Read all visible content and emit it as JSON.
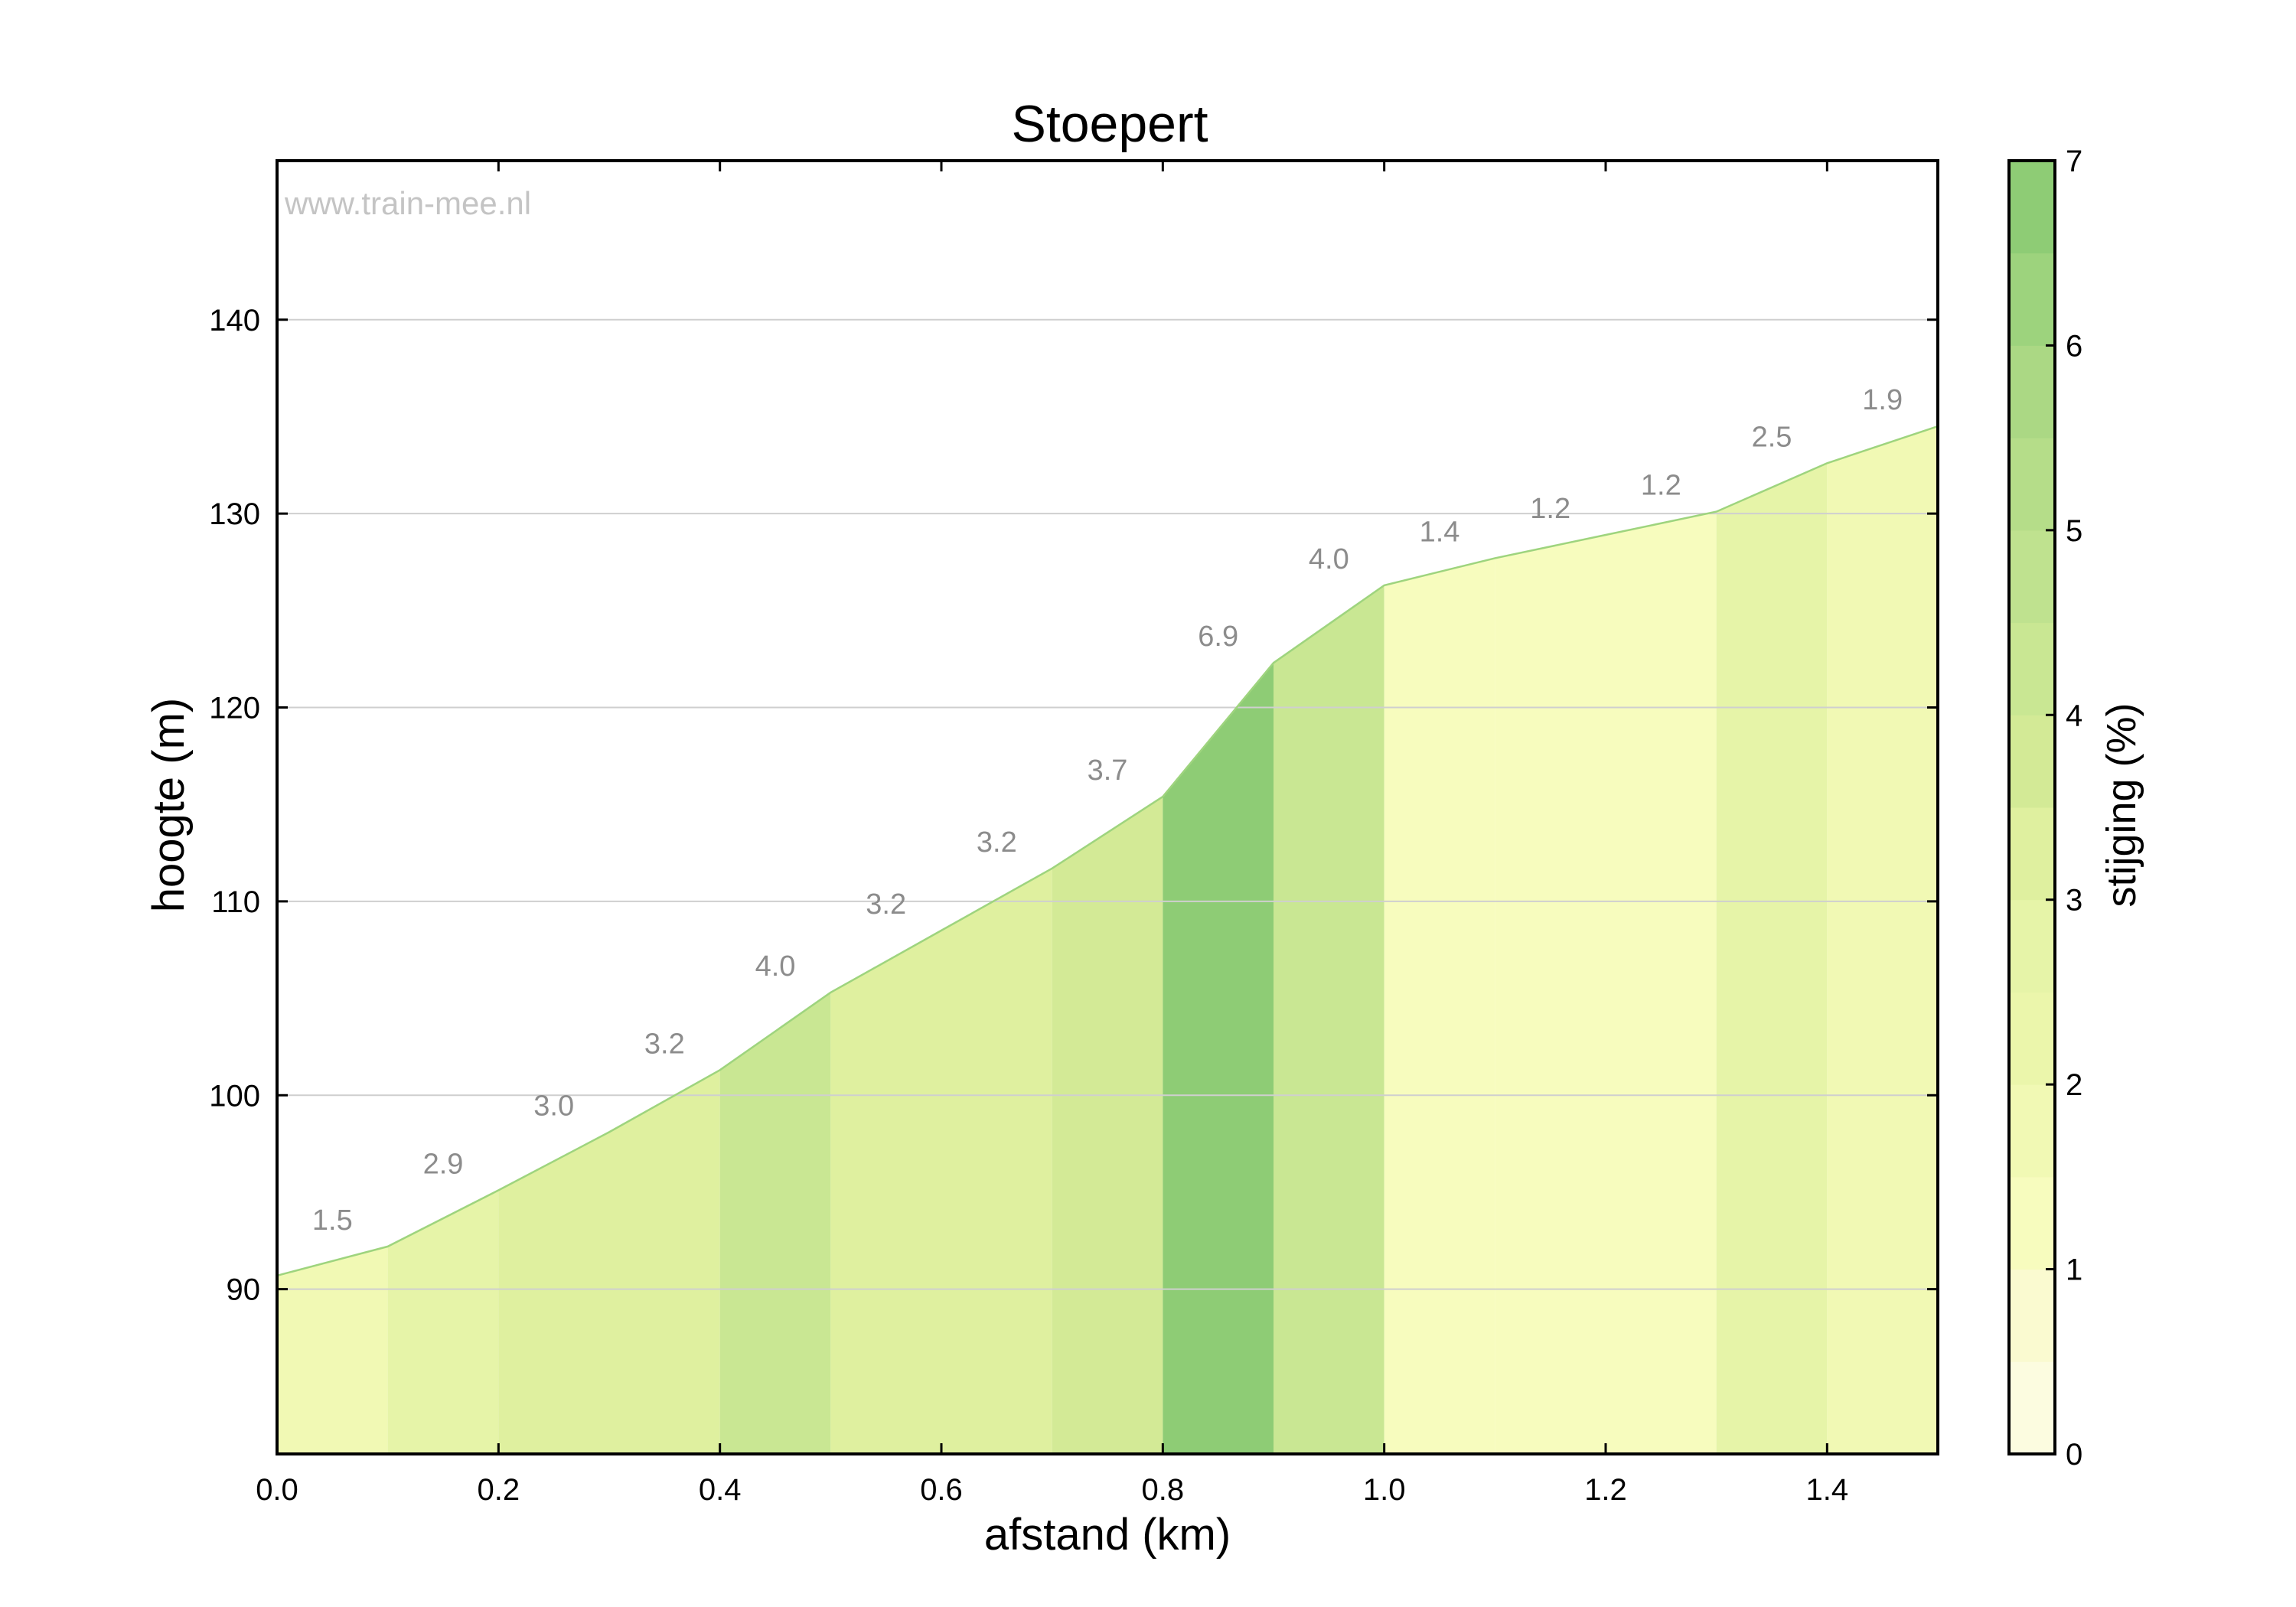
{
  "chart_data": {
    "type": "area",
    "title": "Stoepert",
    "watermark": "www.train-mee.nl",
    "xlabel": "afstand (km)",
    "ylabel": "hoogte (m)",
    "xlim": [
      0,
      1.5
    ],
    "ylim": [
      81.5,
      148.2
    ],
    "x_ticks": [
      0.0,
      0.2,
      0.4,
      0.6,
      0.8,
      1.0,
      1.2,
      1.4
    ],
    "x_tick_labels": [
      "0.0",
      "0.2",
      "0.4",
      "0.6",
      "0.8",
      "1.0",
      "1.2",
      "1.4"
    ],
    "y_ticks": [
      90,
      100,
      110,
      120,
      130,
      140
    ],
    "y_tick_labels": [
      "90",
      "100",
      "110",
      "120",
      "130",
      "140"
    ],
    "grid": "horizontal",
    "profile": {
      "x": [
        0.0,
        0.1,
        0.2,
        0.3,
        0.4,
        0.5,
        0.6,
        0.7,
        0.8,
        0.9,
        1.0,
        1.1,
        1.2,
        1.3,
        1.4,
        1.5
      ],
      "elevation": [
        90.7,
        92.2,
        95.1,
        98.1,
        101.3,
        105.3,
        108.5,
        111.7,
        115.4,
        122.3,
        126.3,
        127.7,
        128.9,
        130.1,
        132.6,
        134.5
      ]
    },
    "segments": {
      "grades": [
        1.5,
        2.9,
        3.0,
        3.2,
        4.0,
        3.2,
        3.2,
        3.7,
        6.9,
        4.0,
        1.4,
        1.2,
        1.2,
        2.5,
        1.9
      ],
      "grade_labels": [
        "1.5",
        "2.9",
        "3.0",
        "3.2",
        "4.0",
        "3.2",
        "3.2",
        "3.7",
        "6.9",
        "4.0",
        "1.4",
        "1.2",
        "1.2",
        "2.5",
        "1.9"
      ]
    },
    "colorbar": {
      "label": "stijging (%)",
      "range": [
        0,
        7
      ],
      "ticks": [
        0,
        1,
        2,
        3,
        4,
        5,
        6,
        7
      ],
      "tick_labels": [
        "0",
        "1",
        "2",
        "3",
        "4",
        "5",
        "6",
        "7"
      ],
      "bands": [
        {
          "from": 0.0,
          "to": 0.5,
          "color": "#fcfce0"
        },
        {
          "from": 0.5,
          "to": 1.0,
          "color": "#fafad0"
        },
        {
          "from": 1.0,
          "to": 1.5,
          "color": "#f7fcbe"
        },
        {
          "from": 1.5,
          "to": 2.0,
          "color": "#f1f9b4"
        },
        {
          "from": 2.0,
          "to": 2.5,
          "color": "#ebf6ab"
        },
        {
          "from": 2.5,
          "to": 3.0,
          "color": "#e6f4a8"
        },
        {
          "from": 3.0,
          "to": 3.5,
          "color": "#dff09f"
        },
        {
          "from": 3.5,
          "to": 4.0,
          "color": "#d3ea96"
        },
        {
          "from": 4.0,
          "to": 4.5,
          "color": "#c9e793"
        },
        {
          "from": 4.5,
          "to": 5.0,
          "color": "#bfe28f"
        },
        {
          "from": 5.0,
          "to": 5.5,
          "color": "#b5dd89"
        },
        {
          "from": 5.5,
          "to": 6.0,
          "color": "#abd884"
        },
        {
          "from": 6.0,
          "to": 6.5,
          "color": "#9dd37d"
        },
        {
          "from": 6.5,
          "to": 7.0,
          "color": "#8ecc75"
        }
      ]
    },
    "line_color": "#9ed47e",
    "grid_color": "#cfcfcf"
  }
}
